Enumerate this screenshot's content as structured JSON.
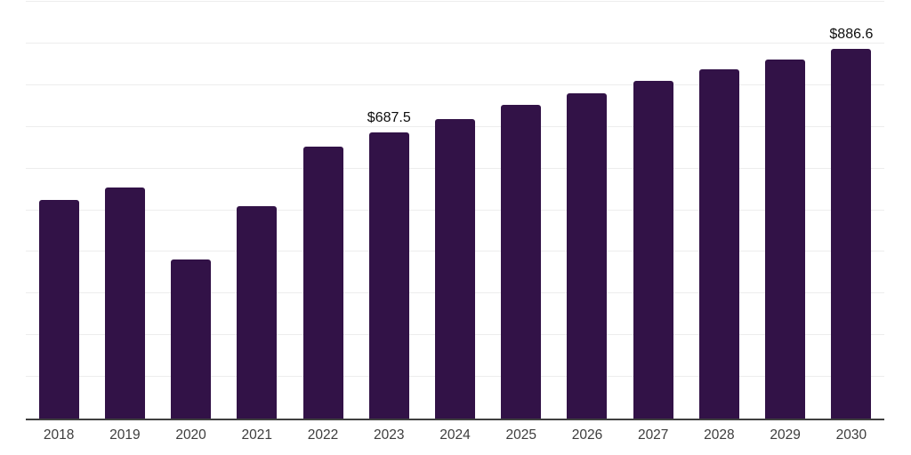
{
  "chart_data": {
    "type": "bar",
    "title": "",
    "xlabel": "",
    "ylabel": "",
    "categories": [
      "2018",
      "2019",
      "2020",
      "2021",
      "2022",
      "2023",
      "2024",
      "2025",
      "2026",
      "2027",
      "2028",
      "2029",
      "2030"
    ],
    "values": [
      523.5,
      553.4,
      382.1,
      509.0,
      653.1,
      687.5,
      719.4,
      753.0,
      780.1,
      809.7,
      837.6,
      861.9,
      886.6
    ],
    "data_labels": {
      "2023": "$687.5",
      "2030": "$886.6"
    },
    "ylim": [
      0,
      1000
    ],
    "gridline_interval": 100,
    "grid": "on",
    "legend": "none",
    "bar_color": "#321247",
    "gridline_color": "#ededed",
    "axis_line_color": "#404040",
    "tick_label_color": "#3d3d3d",
    "value_label_color": "#0d0d0d"
  }
}
